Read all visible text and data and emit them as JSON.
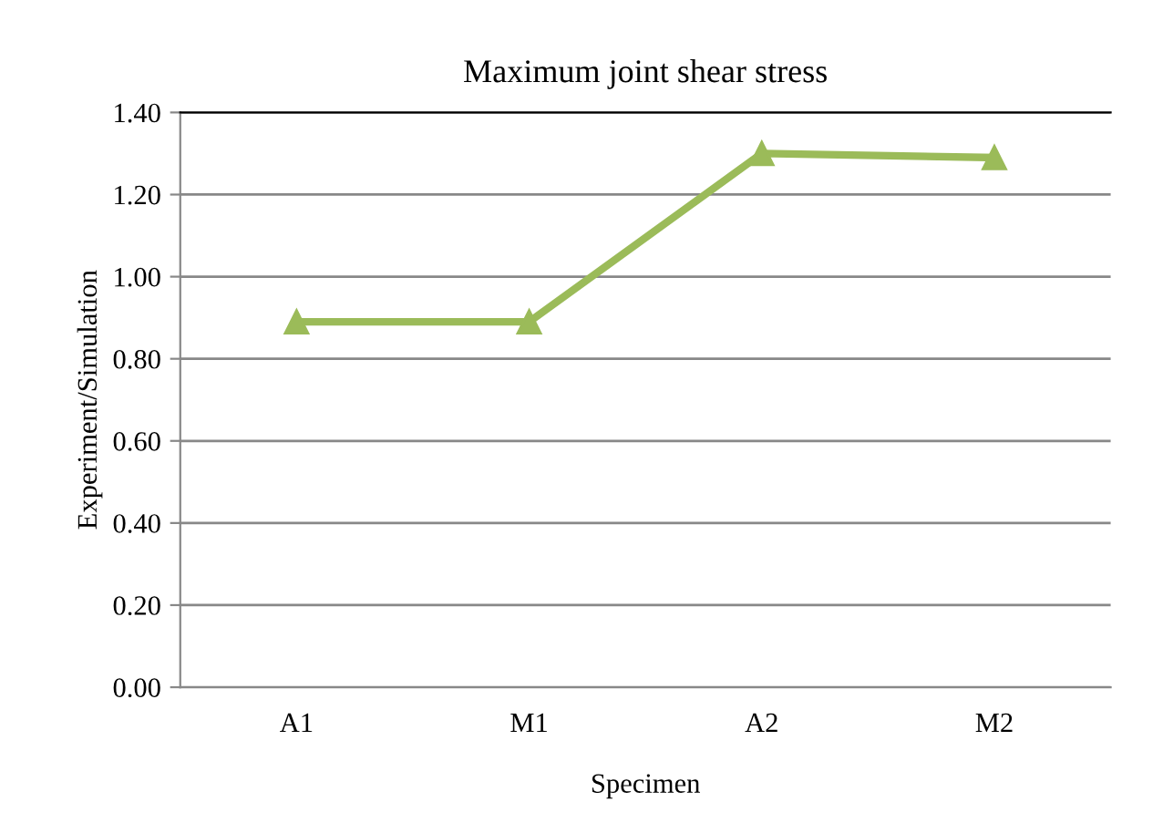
{
  "chart_data": {
    "type": "line",
    "title": "Maximum joint shear stress",
    "xlabel": "Specimen",
    "ylabel": "Experiment/Simulation",
    "categories": [
      "A1",
      "M1",
      "A2",
      "M2"
    ],
    "series": [
      {
        "color": "#9bbb59",
        "values": [
          0.89,
          0.89,
          1.3,
          1.29
        ]
      }
    ],
    "ylim": [
      0,
      1.4
    ],
    "yticks": [
      {
        "value": 0,
        "label": "0.00"
      },
      {
        "value": 0.2,
        "label": "0.20"
      },
      {
        "value": 0.4,
        "label": "0.40"
      },
      {
        "value": 0.6,
        "label": "0.60"
      },
      {
        "value": 0.8,
        "label": "0.80"
      },
      {
        "value": 1.0,
        "label": "1.00"
      },
      {
        "value": 1.2,
        "label": "1.20"
      },
      {
        "value": 1.4,
        "label": "1.40"
      }
    ],
    "grid": "y",
    "marker": "triangle",
    "line_style": "solid"
  }
}
